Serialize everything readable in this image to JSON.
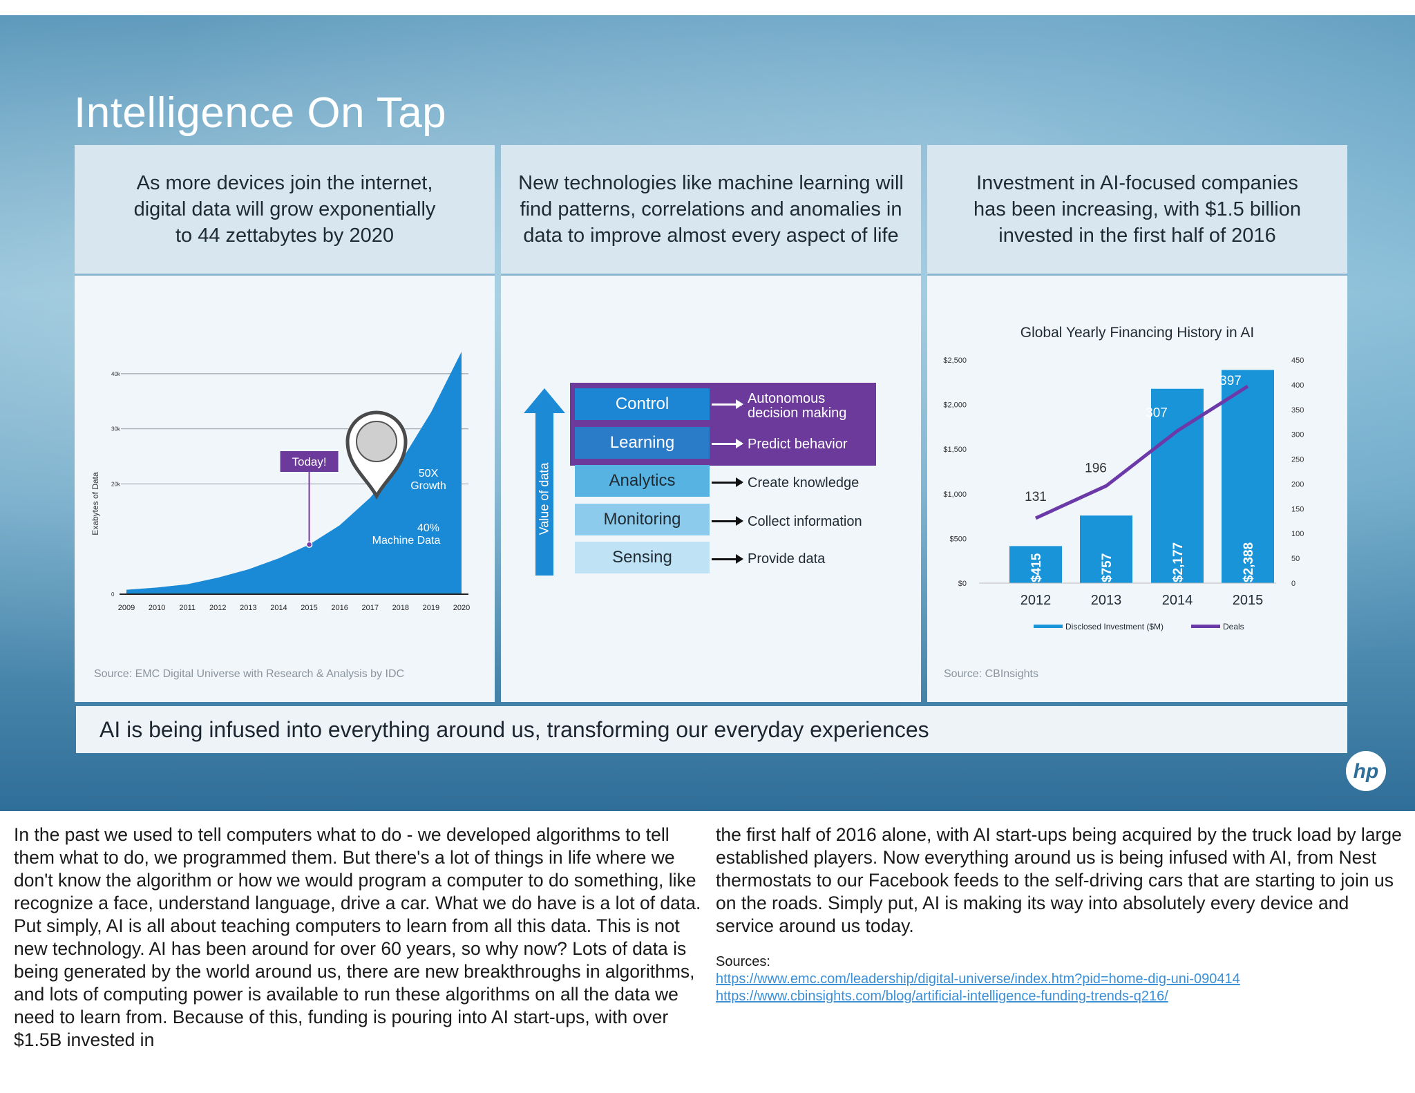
{
  "slide": {
    "title": "Intelligence On Tap",
    "tagline": "AI is being infused into everything around us, transforming our everyday experiences",
    "logo": "hp"
  },
  "panels": [
    {
      "heading": "As more devices join the internet, digital data will grow exponentially to 44 zettabytes by 2020",
      "source": "Source: EMC Digital Universe with Research & Analysis by IDC"
    },
    {
      "heading": "New technologies like machine learning will find patterns, correlations and anomalies in data to improve almost every aspect of life",
      "source": ""
    },
    {
      "heading": "Investment in AI-focused companies has been increasing, with $1.5 billion invested in the first half of 2016",
      "source": "Source: CBInsights"
    }
  ],
  "stack": {
    "axis_label": "Value of data",
    "levels": [
      {
        "box": "Control",
        "label": "Autonomous decision making",
        "highlight": true
      },
      {
        "box": "Learning",
        "label": "Predict behavior",
        "highlight": true
      },
      {
        "box": "Analytics",
        "label": "Create knowledge",
        "highlight": false
      },
      {
        "box": "Monitoring",
        "label": "Collect information",
        "highlight": false
      },
      {
        "box": "Sensing",
        "label": "Provide data",
        "highlight": false
      }
    ],
    "colors": {
      "purple": "#6b3a9b",
      "blue_dark": "#1d86d4",
      "blue_mid": "#56b3e2",
      "blue_light": "#a9d7ef",
      "arrow": "#1d8ad6"
    }
  },
  "chart_data": [
    {
      "type": "area",
      "title": "",
      "ylabel": "Exabytes of Data",
      "x": [
        "2009",
        "2010",
        "2011",
        "2012",
        "2013",
        "2014",
        "2015",
        "2016",
        "2017",
        "2018",
        "2019",
        "2020"
      ],
      "y_ticks": [
        "0",
        "20k",
        "30k",
        "40k"
      ],
      "ylim": [
        0,
        44000
      ],
      "values": [
        800,
        1200,
        1800,
        3000,
        4500,
        6500,
        9000,
        12500,
        17500,
        24000,
        33000,
        44000
      ],
      "annotations": {
        "today": "Today!",
        "growth": "50X Growth",
        "machine": "40% Machine Data"
      },
      "color": "#1a8ad6"
    },
    {
      "type": "bar",
      "title": "Global Yearly Financing History in AI",
      "categories": [
        "2012",
        "2013",
        "2014",
        "2015"
      ],
      "series": [
        {
          "name": "Disclosed Investment ($M)",
          "values": [
            415,
            757,
            2177,
            2388
          ],
          "labels": [
            "$415",
            "$757",
            "$2,177",
            "$2,388"
          ],
          "color": "#1a94d8"
        },
        {
          "name": "Deals",
          "values": [
            131,
            196,
            307,
            397
          ],
          "color": "#6b3aa8"
        }
      ],
      "y_left_ticks": [
        "$0",
        "$500",
        "$1,000",
        "$1,500",
        "$2,000",
        "$2,500"
      ],
      "y_right_ticks": [
        "0",
        "50",
        "100",
        "150",
        "200",
        "250",
        "300",
        "350",
        "400",
        "450"
      ],
      "ylim_left": [
        0,
        2500
      ],
      "ylim_right": [
        0,
        450
      ],
      "legend_position": "bottom"
    }
  ],
  "notes": {
    "left": "In the past we used to tell computers what to do - we developed algorithms to tell them what to do, we programmed them. But there's a lot of things in life where we don't know the algorithm or how we would program a computer to do something, like recognize a face, understand language, drive a car. What we do have is a lot of data. Put simply, AI is all about teaching computers to learn from all this data. This is not new technology. AI has been around for over 60 years, so why now? Lots of data is being generated by the world around us, there are new breakthroughs in algorithms, and lots of computing power is available to run these algorithms on all the data we need to learn from. Because of this, funding is pouring into AI start-ups, with over $1.5B invested in",
    "right": "the first half of 2016 alone, with AI start-ups being acquired by the truck load by large established players. Now everything around us is being infused with AI, from Nest thermostats to our Facebook feeds to the self-driving cars that are starting to join us on the roads.  Simply put, AI is making its way into absolutely every device and service around us today.",
    "sources_label": "Sources:",
    "links": [
      "https://www.emc.com/leadership/digital-universe/index.htm?pid=home-dig-uni-090414",
      "https://www.cbinsights.com/blog/artificial-intelligence-funding-trends-q216/"
    ]
  }
}
